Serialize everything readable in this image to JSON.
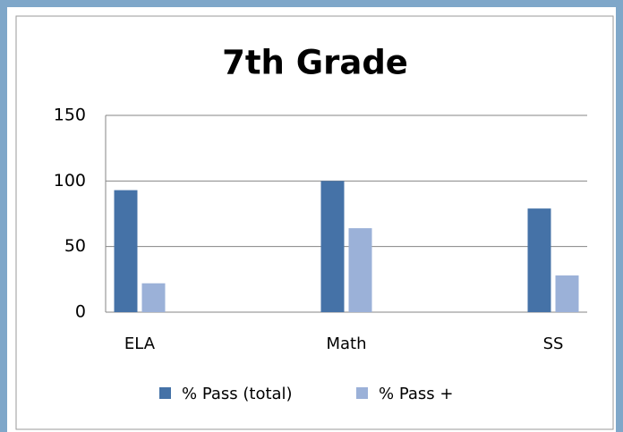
{
  "chart_data": {
    "type": "bar",
    "title": "7th Grade",
    "categories": [
      "ELA",
      "Math",
      "SS"
    ],
    "series": [
      {
        "name": "% Pass (total)",
        "color": "#4572a7",
        "values": [
          93,
          100,
          79
        ]
      },
      {
        "name": "% Pass +",
        "color": "#9bb1d8",
        "values": [
          22,
          64,
          28
        ]
      }
    ],
    "ylim": [
      0,
      150
    ],
    "yticks": [
      0,
      50,
      100,
      150
    ],
    "grid": true,
    "legend": "bottom"
  }
}
